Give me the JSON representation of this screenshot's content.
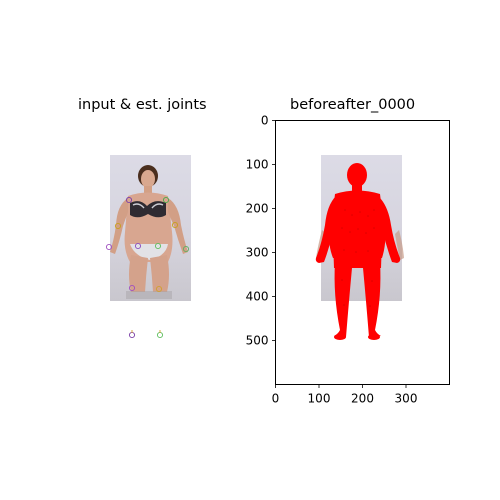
{
  "figure": {
    "left_panel": {
      "title": "input & est. joints"
    },
    "right_panel": {
      "title": "beforeafter_0000"
    }
  },
  "chart_data": [
    {
      "type": "image",
      "title": "input & est. joints",
      "axes_visible": false,
      "content": "photo of a standing person with estimated joint markers",
      "joint_marker_colors": [
        "#7b3fa8",
        "#4aa84a",
        "#c8a01e",
        "#a050c0",
        "#60b060",
        "#d0a030",
        "#8a4fc0",
        "#5fbf5f"
      ]
    },
    {
      "type": "image",
      "title": "beforeafter_0000",
      "xlim": [
        0,
        400
      ],
      "ylim": [
        600,
        0
      ],
      "xticks": [
        0,
        100,
        200,
        300
      ],
      "yticks": [
        0,
        100,
        200,
        300,
        400,
        500
      ],
      "overlay_color": "#ff0000",
      "content": "photo with a red body mesh overlay"
    }
  ]
}
